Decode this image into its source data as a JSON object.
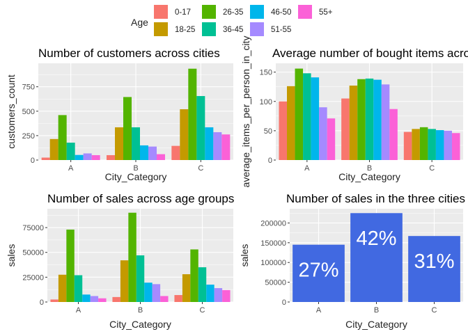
{
  "legend": {
    "title": "Age",
    "items": [
      {
        "label": "0-17",
        "color": "#F8766D"
      },
      {
        "label": "18-25",
        "color": "#C49A00"
      },
      {
        "label": "26-35",
        "color": "#53B400"
      },
      {
        "label": "36-45",
        "color": "#00C094"
      },
      {
        "label": "46-50",
        "color": "#00B6EB"
      },
      {
        "label": "51-55",
        "color": "#A58AFF"
      },
      {
        "label": "55+",
        "color": "#FB61D7"
      }
    ]
  },
  "chart_data": [
    {
      "type": "bar",
      "title": "Number of customers across cities",
      "xlabel": "City_Category",
      "ylabel": "customers_count",
      "categories": [
        "A",
        "B",
        "C"
      ],
      "yticks": [
        0,
        250,
        500,
        750
      ],
      "ylim": [
        0,
        990
      ],
      "grid": true,
      "series": [
        {
          "name": "0-17",
          "values": [
            25,
            50,
            145
          ]
        },
        {
          "name": "18-25",
          "values": [
            215,
            335,
            520
          ]
        },
        {
          "name": "26-35",
          "values": [
            460,
            645,
            935
          ]
        },
        {
          "name": "36-45",
          "values": [
            178,
            335,
            655
          ]
        },
        {
          "name": "46-50",
          "values": [
            52,
            150,
            335
          ]
        },
        {
          "name": "51-55",
          "values": [
            68,
            138,
            285
          ]
        },
        {
          "name": "55+",
          "values": [
            50,
            60,
            262
          ]
        }
      ]
    },
    {
      "type": "bar",
      "title": "Average number of bought items across cities",
      "xlabel": "City_Category",
      "ylabel": "average_items_per_person_in_city",
      "categories": [
        "A",
        "B",
        "C"
      ],
      "yticks": [
        0,
        50,
        100,
        150
      ],
      "ylim": [
        0,
        165
      ],
      "grid": true,
      "series": [
        {
          "name": "0-17",
          "values": [
            100,
            105,
            48
          ]
        },
        {
          "name": "18-25",
          "values": [
            126,
            127,
            53
          ]
        },
        {
          "name": "26-35",
          "values": [
            156,
            138,
            56
          ]
        },
        {
          "name": "36-45",
          "values": [
            148,
            139,
            53
          ]
        },
        {
          "name": "46-50",
          "values": [
            141,
            137,
            51
          ]
        },
        {
          "name": "51-55",
          "values": [
            90,
            129,
            50
          ]
        },
        {
          "name": "55+",
          "values": [
            71,
            87,
            46
          ]
        }
      ]
    },
    {
      "type": "bar",
      "title": "Number of sales across age groups",
      "xlabel": "City_Category",
      "ylabel": "sales",
      "categories": [
        "A",
        "B",
        "C"
      ],
      "yticks": [
        0,
        25000,
        50000,
        75000
      ],
      "ytick_labels": [
        "0",
        "25000",
        "50000",
        "75000"
      ],
      "ylim": [
        0,
        94000
      ],
      "grid": true,
      "series": [
        {
          "name": "0-17",
          "values": [
            2500,
            5000,
            7000
          ]
        },
        {
          "name": "18-25",
          "values": [
            27500,
            42000,
            28000
          ]
        },
        {
          "name": "26-35",
          "values": [
            73000,
            90000,
            53000
          ]
        },
        {
          "name": "36-45",
          "values": [
            27000,
            47000,
            35000
          ]
        },
        {
          "name": "46-50",
          "values": [
            7500,
            19500,
            17500
          ]
        },
        {
          "name": "51-55",
          "values": [
            6000,
            18000,
            14000
          ]
        },
        {
          "name": "55+",
          "values": [
            3700,
            6000,
            12000
          ]
        }
      ]
    },
    {
      "type": "bar",
      "title": "Number of sales in the three cities",
      "xlabel": "City_Category",
      "ylabel": "sales",
      "categories": [
        "A",
        "B",
        "C"
      ],
      "yticks": [
        0,
        50000,
        100000,
        150000,
        200000
      ],
      "ytick_labels": [
        "0",
        "50000",
        "100000",
        "150000",
        "200000"
      ],
      "ylim": [
        0,
        236000
      ],
      "grid": true,
      "color": "#4169E1",
      "values": [
        145000,
        225000,
        167000
      ],
      "labels": [
        "27%",
        "42%",
        "31%"
      ]
    }
  ]
}
